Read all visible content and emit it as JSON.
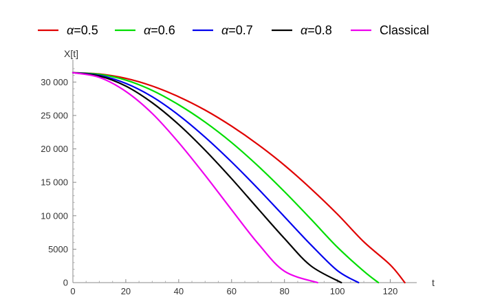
{
  "chart_data": {
    "type": "line",
    "xlabel": "t",
    "ylabel": "X[t]",
    "xlim": [
      0,
      130
    ],
    "ylim": [
      0,
      32500
    ],
    "x_ticks": [
      0,
      20,
      40,
      60,
      80,
      100,
      120
    ],
    "y_ticks": [
      0,
      5000,
      10000,
      15000,
      20000,
      25000,
      30000
    ],
    "x_tick_labels": [
      "0",
      "20",
      "40",
      "60",
      "80",
      "100",
      "120"
    ],
    "y_tick_labels": [
      "0",
      "5000",
      "10 000",
      "15 000",
      "20 000",
      "25 000",
      "30 000"
    ],
    "grid": false,
    "legend_position": "top",
    "series": [
      {
        "name_symbol": "α",
        "name_text": "=0.5",
        "color": "#e00000",
        "x": [
          0,
          10,
          20,
          30,
          40,
          50,
          60,
          70,
          80,
          90,
          100,
          110,
          120,
          125.5
        ],
        "y": [
          31400,
          31200,
          30550,
          29400,
          27800,
          25800,
          23400,
          20650,
          17550,
          14050,
          10250,
          6100,
          2650,
          0
        ]
      },
      {
        "name_symbol": "α",
        "name_text": "=0.6",
        "color": "#00dd00",
        "x": [
          0,
          10,
          20,
          30,
          40,
          50,
          60,
          70,
          80,
          90,
          100,
          110,
          115.5
        ],
        "y": [
          31400,
          31150,
          30300,
          28750,
          26600,
          24000,
          20950,
          17450,
          13600,
          9500,
          5300,
          1700,
          0
        ]
      },
      {
        "name_symbol": "α",
        "name_text": "=0.7",
        "color": "#0000ee",
        "x": [
          0,
          10,
          20,
          30,
          40,
          50,
          60,
          70,
          80,
          90,
          100,
          108
        ],
        "y": [
          31400,
          31000,
          29800,
          27800,
          25050,
          21750,
          18050,
          14050,
          9850,
          5650,
          1800,
          0
        ]
      },
      {
        "name_symbol": "α",
        "name_text": "=0.8",
        "color": "#000000",
        "x": [
          0,
          10,
          20,
          30,
          40,
          50,
          60,
          70,
          80,
          90,
          101.5
        ],
        "y": [
          31400,
          30900,
          29400,
          26900,
          23650,
          19800,
          15550,
          11050,
          6600,
          2500,
          0
        ]
      },
      {
        "name_symbol": "",
        "name_text": "Classical",
        "color": "#ee00ee",
        "x": [
          0,
          10,
          20,
          30,
          40,
          50,
          60,
          70,
          80,
          92.5
        ],
        "y": [
          31400,
          30700,
          28600,
          25300,
          20950,
          16050,
          10900,
          5850,
          1700,
          0
        ]
      }
    ]
  }
}
